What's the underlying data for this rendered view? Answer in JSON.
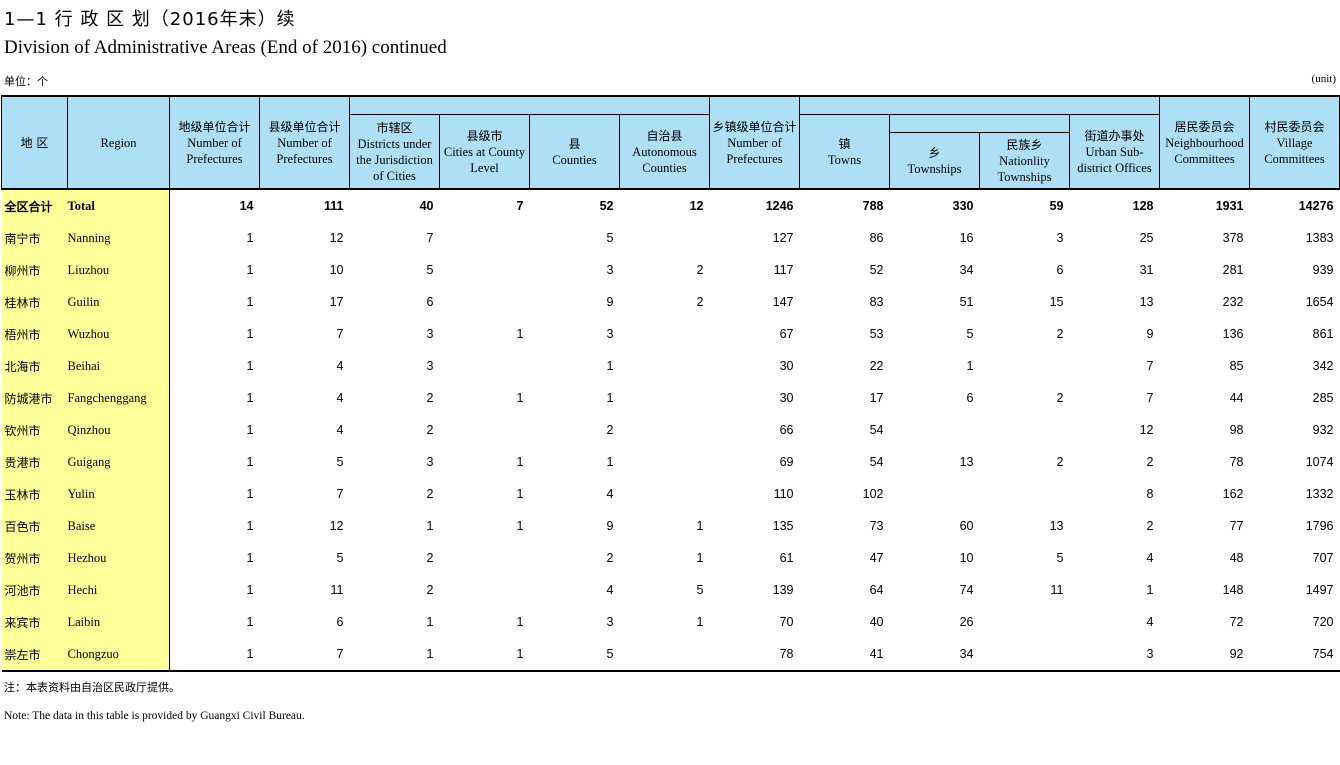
{
  "title_cn": "1—1 行 政 区 划（2016年末）续",
  "title_en": "Division of Administrative Areas (End of 2016) continued",
  "unit_cn": "单位：个",
  "unit_en": "(unit)",
  "headers": {
    "region_cn": "地 区",
    "region_en": "Region",
    "prefectures_cn": "地级单位合计",
    "prefectures_en": "Number of Prefectures",
    "county_units_cn": "县级单位合计",
    "county_units_en": "Number of Prefectures",
    "districts_cn": "市辖区",
    "districts_en": "Districts under the Jurisdiction of Cities",
    "county_cities_cn": "县级市",
    "county_cities_en": "Cities at County Level",
    "counties_cn": "县",
    "counties_en": "Counties",
    "autonomous_counties_cn": "自治县",
    "autonomous_counties_en": "Autonomous Counties",
    "township_units_cn": "乡镇级单位合计",
    "township_units_en": "Number of Prefectures",
    "towns_cn": "镇",
    "towns_en": "Towns",
    "townships_cn": "乡",
    "townships_en": "Townships",
    "nationality_townships_cn": "民族乡",
    "nationality_townships_en": "Nationlity Townships",
    "street_offices_cn": "街道办事处",
    "street_offices_en": "Urban Sub-district Offices",
    "neighbourhood_cn": "居民委员会",
    "neighbourhood_en": "Neighbourhood Committees",
    "village_cn": "村民委员会",
    "village_en": "Village Committees"
  },
  "rows": [
    {
      "cn": "全区合计",
      "en": "Total",
      "v": [
        "14",
        "111",
        "40",
        "7",
        "52",
        "12",
        "1246",
        "788",
        "330",
        "59",
        "128",
        "1931",
        "14276"
      ]
    },
    {
      "cn": "南宁市",
      "en": "Nanning",
      "v": [
        "1",
        "12",
        "7",
        "",
        "5",
        "",
        "127",
        "86",
        "16",
        "3",
        "25",
        "378",
        "1383"
      ]
    },
    {
      "cn": "柳州市",
      "en": "Liuzhou",
      "v": [
        "1",
        "10",
        "5",
        "",
        "3",
        "2",
        "117",
        "52",
        "34",
        "6",
        "31",
        "281",
        "939"
      ]
    },
    {
      "cn": "桂林市",
      "en": "Guilin",
      "v": [
        "1",
        "17",
        "6",
        "",
        "9",
        "2",
        "147",
        "83",
        "51",
        "15",
        "13",
        "232",
        "1654"
      ]
    },
    {
      "cn": "梧州市",
      "en": "Wuzhou",
      "v": [
        "1",
        "7",
        "3",
        "1",
        "3",
        "",
        "67",
        "53",
        "5",
        "2",
        "9",
        "136",
        "861"
      ]
    },
    {
      "cn": "北海市",
      "en": "Beihai",
      "v": [
        "1",
        "4",
        "3",
        "",
        "1",
        "",
        "30",
        "22",
        "1",
        "",
        "7",
        "85",
        "342"
      ]
    },
    {
      "cn": "防城港市",
      "en": "Fangchenggang",
      "v": [
        "1",
        "4",
        "2",
        "1",
        "1",
        "",
        "30",
        "17",
        "6",
        "2",
        "7",
        "44",
        "285"
      ]
    },
    {
      "cn": "钦州市",
      "en": "Qinzhou",
      "v": [
        "1",
        "4",
        "2",
        "",
        "2",
        "",
        "66",
        "54",
        "",
        "",
        "12",
        "98",
        "932"
      ]
    },
    {
      "cn": "贵港市",
      "en": "Guigang",
      "v": [
        "1",
        "5",
        "3",
        "1",
        "1",
        "",
        "69",
        "54",
        "13",
        "2",
        "2",
        "78",
        "1074"
      ]
    },
    {
      "cn": "玉林市",
      "en": "Yulin",
      "v": [
        "1",
        "7",
        "2",
        "1",
        "4",
        "",
        "110",
        "102",
        "",
        "",
        "8",
        "162",
        "1332"
      ]
    },
    {
      "cn": "百色市",
      "en": "Baise",
      "v": [
        "1",
        "12",
        "1",
        "1",
        "9",
        "1",
        "135",
        "73",
        "60",
        "13",
        "2",
        "77",
        "1796"
      ]
    },
    {
      "cn": "贺州市",
      "en": "Hezhou",
      "v": [
        "1",
        "5",
        "2",
        "",
        "2",
        "1",
        "61",
        "47",
        "10",
        "5",
        "4",
        "48",
        "707"
      ]
    },
    {
      "cn": "河池市",
      "en": "Hechi",
      "v": [
        "1",
        "11",
        "2",
        "",
        "4",
        "5",
        "139",
        "64",
        "74",
        "11",
        "1",
        "148",
        "1497"
      ]
    },
    {
      "cn": "来宾市",
      "en": "Laibin",
      "v": [
        "1",
        "6",
        "1",
        "1",
        "3",
        "1",
        "70",
        "40",
        "26",
        "",
        "4",
        "72",
        "720"
      ]
    },
    {
      "cn": "崇左市",
      "en": "Chongzuo",
      "v": [
        "1",
        "7",
        "1",
        "1",
        "5",
        "",
        "78",
        "41",
        "34",
        "",
        "3",
        "92",
        "754"
      ]
    }
  ],
  "note_cn": "注：本表资料由自治区民政厅提供。",
  "note_en": "Note: The data in this table is provided by Guangxi Civil Bureau."
}
